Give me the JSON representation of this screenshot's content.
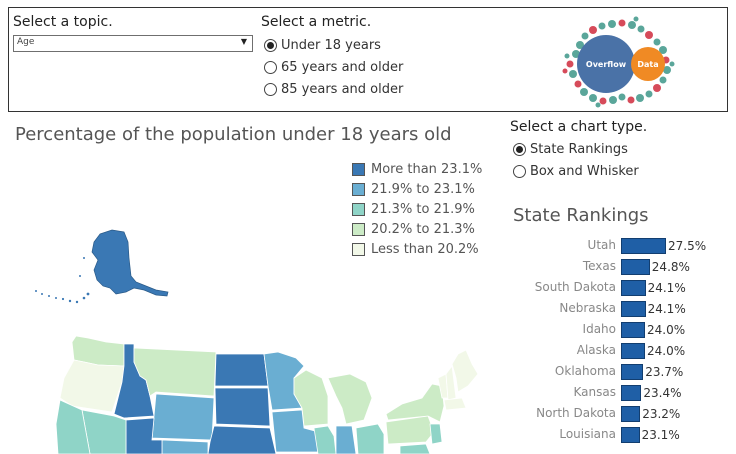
{
  "topic": {
    "title": "Select a topic.",
    "value": "Age"
  },
  "metric": {
    "title": "Select a metric.",
    "options": [
      "Under 18 years",
      "65 years and older",
      "85 years and older"
    ],
    "selected": 0
  },
  "logo": {
    "left_text": "Overflow",
    "right_text": "Data"
  },
  "map": {
    "title": "Percentage of the population under 18 years old",
    "legend": [
      {
        "label": "More than 23.1%",
        "color": "#3a78b4"
      },
      {
        "label": "21.9% to 23.1%",
        "color": "#6aaed2"
      },
      {
        "label": "21.3% to 21.9%",
        "color": "#8fd4c7"
      },
      {
        "label": "20.2% to 21.3%",
        "color": "#ccebc6"
      },
      {
        "label": "Less than 20.2%",
        "color": "#f2f8e8"
      }
    ]
  },
  "chart_type": {
    "title": "Select a chart type.",
    "options": [
      "State Rankings",
      "Box and Whisker"
    ],
    "selected": 0
  },
  "rankings": {
    "title": "State Rankings",
    "bar_color": "#1f5fa6",
    "rows": [
      {
        "state": "Utah",
        "value": 27.5,
        "label": "27.5%"
      },
      {
        "state": "Texas",
        "value": 24.8,
        "label": "24.8%"
      },
      {
        "state": "South Dakota",
        "value": 24.1,
        "label": "24.1%"
      },
      {
        "state": "Nebraska",
        "value": 24.1,
        "label": "24.1%"
      },
      {
        "state": "Idaho",
        "value": 24.0,
        "label": "24.0%"
      },
      {
        "state": "Alaska",
        "value": 24.0,
        "label": "24.0%"
      },
      {
        "state": "Oklahoma",
        "value": 23.7,
        "label": "23.7%"
      },
      {
        "state": "Kansas",
        "value": 23.4,
        "label": "23.4%"
      },
      {
        "state": "North Dakota",
        "value": 23.2,
        "label": "23.2%"
      },
      {
        "state": "Louisiana",
        "value": 23.1,
        "label": "23.1%"
      }
    ]
  }
}
